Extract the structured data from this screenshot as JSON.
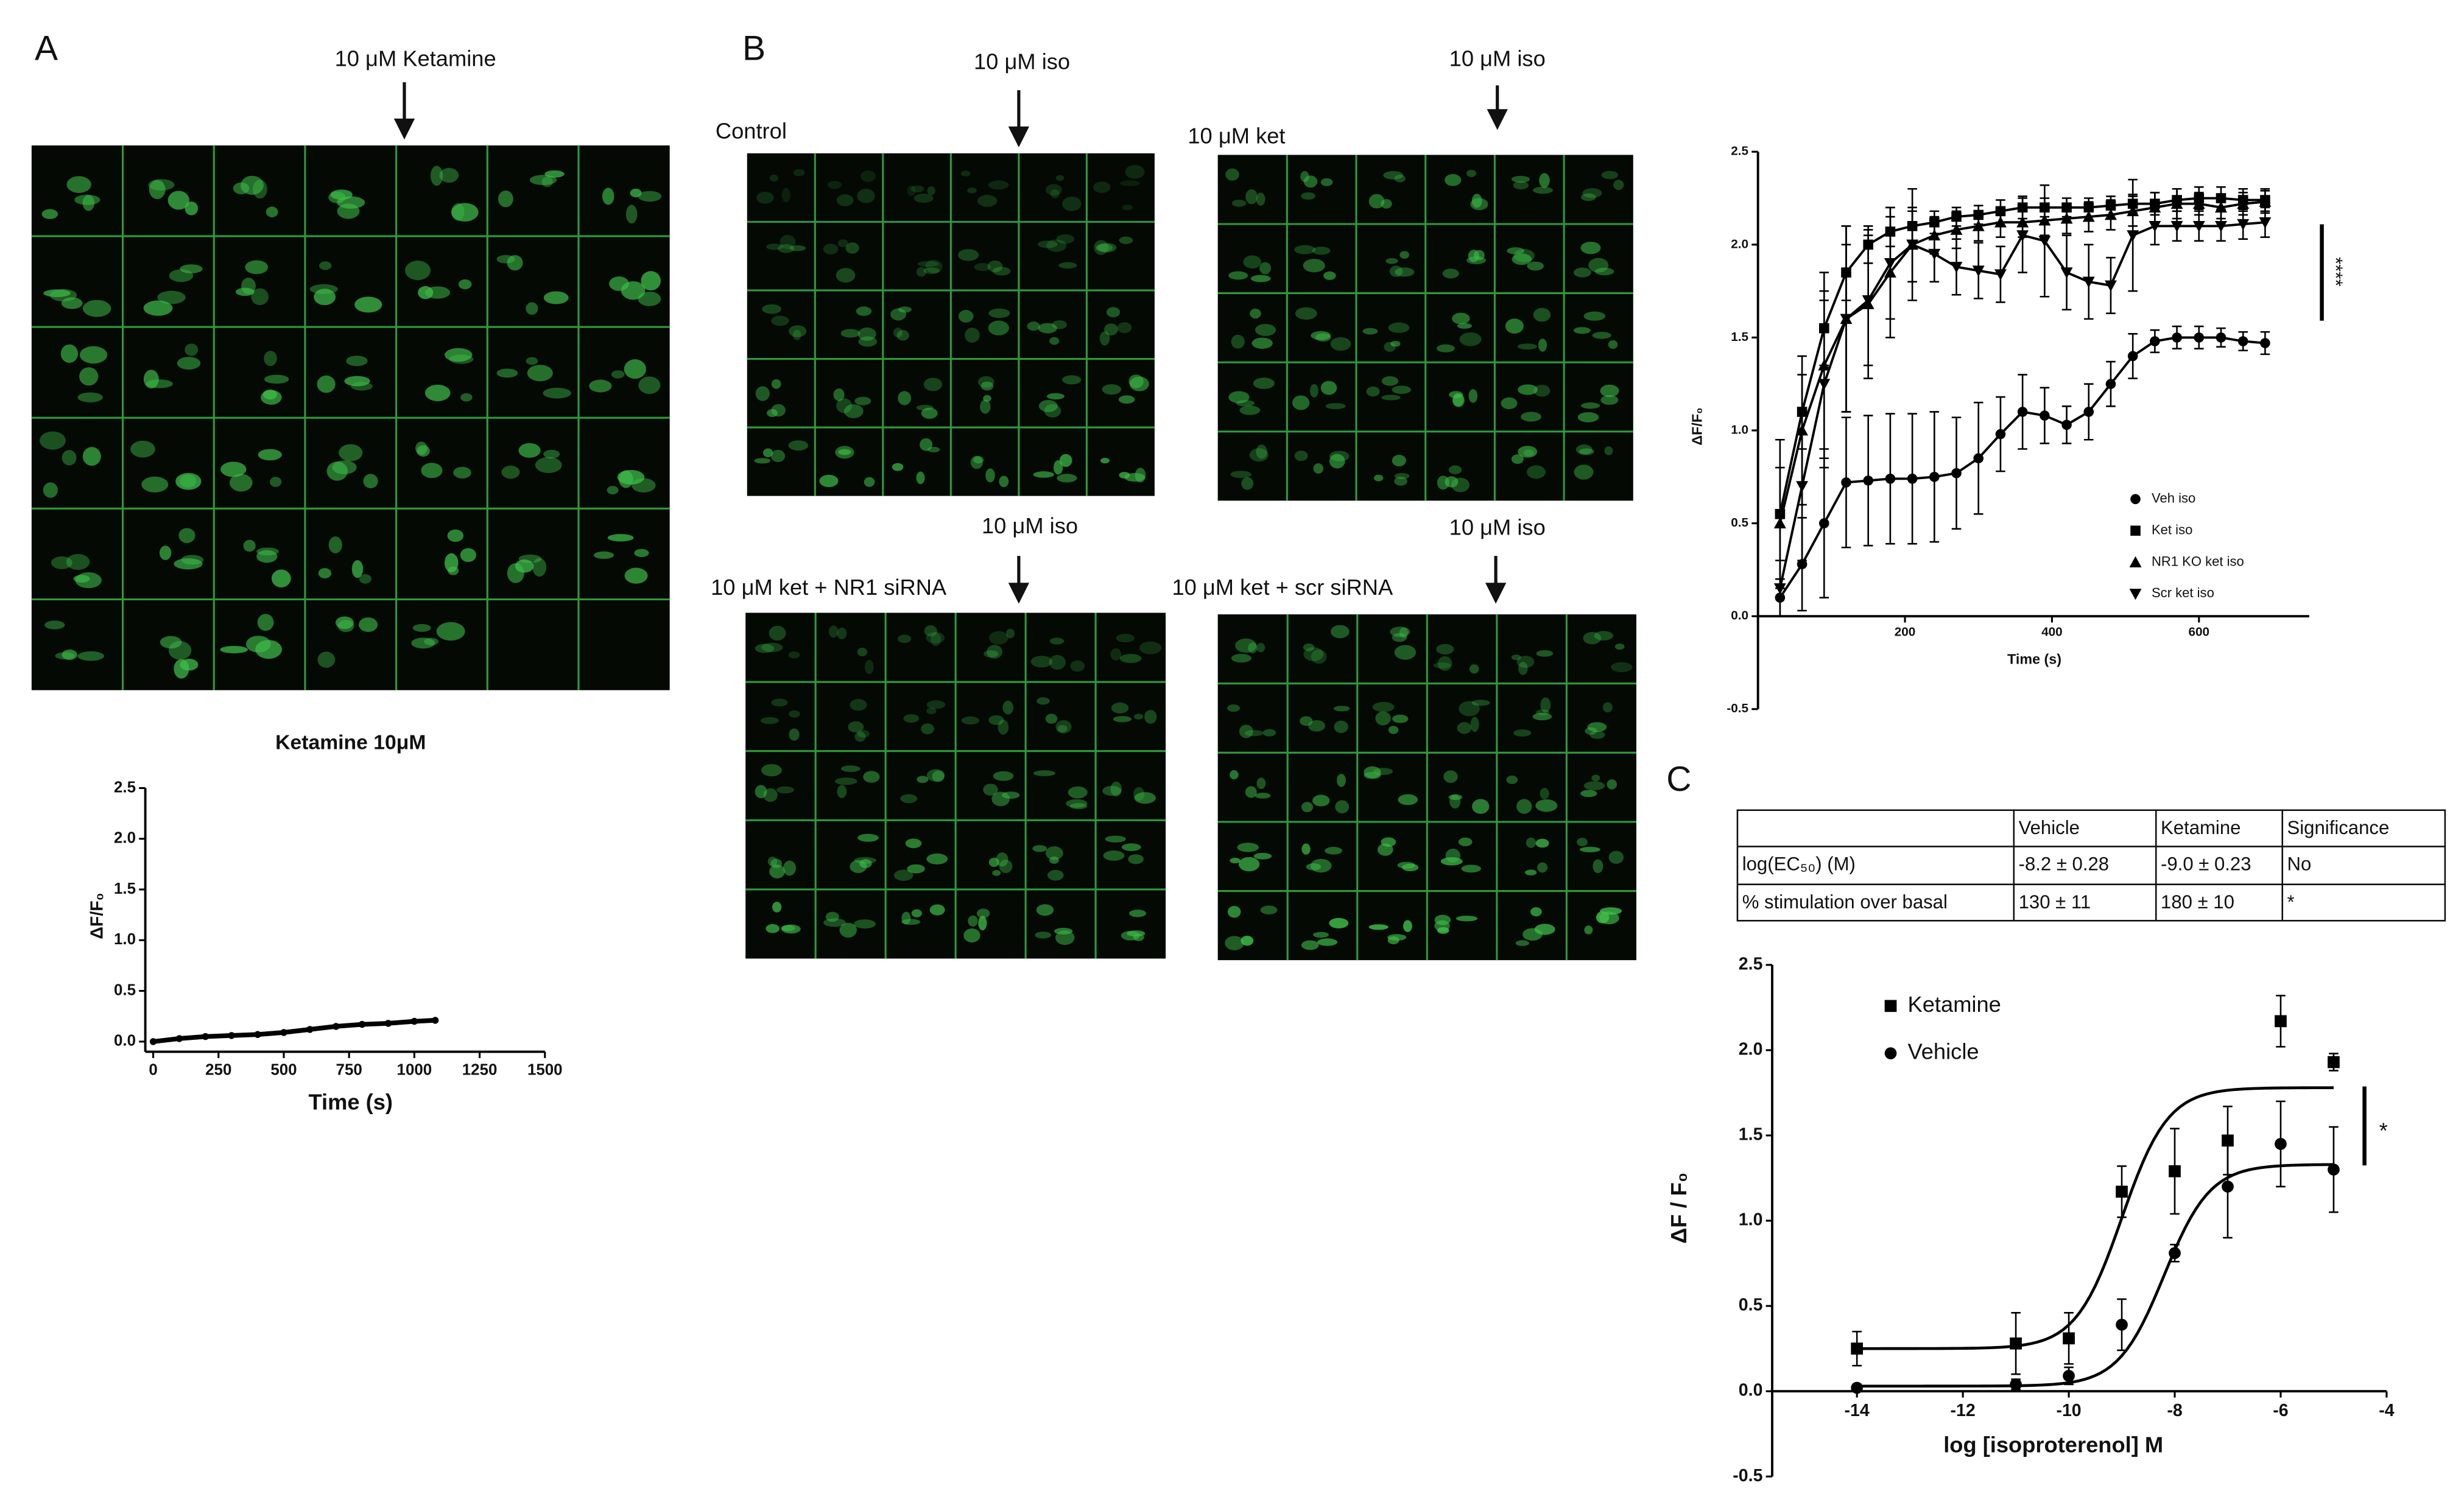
{
  "panels": {
    "a": {
      "label": "A",
      "stimulus": "10 μM Ketamine"
    },
    "b": {
      "label": "B",
      "images": [
        {
          "condition": "Control",
          "stimulus": "10 μM iso"
        },
        {
          "condition": "10 μM ket",
          "stimulus": "10 μM iso"
        },
        {
          "condition": "10 μM ket + NR1 siRNA",
          "stimulus": "10 μM iso"
        },
        {
          "condition": "10 μM ket + scr siRNA",
          "stimulus": "10 μM iso"
        }
      ]
    },
    "c": {
      "label": "C"
    }
  },
  "table": {
    "header": [
      "Vehicle",
      "Ketamine",
      "Significance"
    ],
    "rows": [
      [
        "log(EC₅₀) (M)",
        "-8.2 ± 0.28",
        "-9.0 ± 0.23",
        "No"
      ],
      [
        "% stimulation over basal",
        "130 ± 11",
        "180 ± 10",
        "*"
      ]
    ]
  },
  "chart_data": [
    {
      "type": "line",
      "title": "Ketamine 10μM",
      "x_label": "Time (s)",
      "y_label": "ΔF/F₀",
      "x": [
        0,
        100,
        200,
        300,
        400,
        500,
        600,
        700,
        800,
        900,
        1000,
        1080
      ],
      "series": [
        {
          "name": "Ketamine 10μM",
          "color": "#000000",
          "marker": "circle",
          "values": [
            0.0,
            0.03,
            0.05,
            0.06,
            0.07,
            0.09,
            0.12,
            0.15,
            0.17,
            0.18,
            0.2,
            0.21
          ]
        }
      ],
      "xlim": [
        0,
        1500
      ],
      "ylim": [
        -0.1,
        2.5
      ],
      "xticks": [
        0,
        250,
        500,
        750,
        1000,
        1250,
        1500
      ],
      "yticks": [
        {
          "value": 0,
          "label": "0.0"
        },
        {
          "value": 0.5,
          "label": "0.5"
        },
        {
          "value": 1,
          "label": "1.0"
        },
        {
          "value": 1.5,
          "label": "1.5"
        },
        {
          "value": 2,
          "label": "2.0"
        },
        {
          "value": 2.5,
          "label": "2.5"
        }
      ]
    },
    {
      "type": "line",
      "x_label": "Time (s)",
      "y_label": "ΔF/F₀",
      "annotation": "****",
      "legend": "lower right",
      "x": [
        30,
        60,
        90,
        120,
        150,
        180,
        210,
        240,
        270,
        300,
        330,
        360,
        390,
        420,
        450,
        480,
        510,
        540,
        570,
        600,
        630,
        660,
        690
      ],
      "series": [
        {
          "name": "Veh iso",
          "color": "#000000",
          "marker": "circle",
          "values": [
            0.1,
            0.28,
            0.5,
            0.72,
            0.73,
            0.74,
            0.74,
            0.75,
            0.77,
            0.85,
            0.98,
            1.1,
            1.08,
            1.03,
            1.1,
            1.25,
            1.4,
            1.48,
            1.5,
            1.5,
            1.5,
            1.48,
            1.47
          ],
          "errors": [
            0.1,
            0.25,
            0.4,
            0.35,
            0.35,
            0.35,
            0.35,
            0.35,
            0.3,
            0.3,
            0.2,
            0.2,
            0.15,
            0.1,
            0.15,
            0.12,
            0.12,
            0.06,
            0.06,
            0.06,
            0.05,
            0.05,
            0.06
          ]
        },
        {
          "name": "Ket iso",
          "color": "#000000",
          "marker": "square",
          "values": [
            0.55,
            1.1,
            1.55,
            1.85,
            2.0,
            2.07,
            2.1,
            2.12,
            2.15,
            2.16,
            2.18,
            2.2,
            2.2,
            2.2,
            2.2,
            2.21,
            2.22,
            2.22,
            2.24,
            2.25,
            2.25,
            2.24,
            2.24
          ],
          "errors": [
            0.4,
            0.2,
            0.2,
            0.15,
            0.1,
            0.08,
            0.08,
            0.06,
            0.05,
            0.05,
            0.06,
            0.06,
            0.05,
            0.05,
            0.05,
            0.05,
            0.05,
            0.06,
            0.06,
            0.06,
            0.06,
            0.06,
            0.06
          ]
        },
        {
          "name": "NR1 KO ket iso",
          "color": "#000000",
          "marker": "triangle-up",
          "values": [
            0.5,
            1.0,
            1.35,
            1.6,
            1.68,
            1.85,
            2.0,
            2.05,
            2.08,
            2.1,
            2.12,
            2.12,
            2.13,
            2.14,
            2.15,
            2.16,
            2.18,
            2.2,
            2.22,
            2.22,
            2.2,
            2.22,
            2.23
          ],
          "errors": [
            0.3,
            0.4,
            0.5,
            0.5,
            0.4,
            0.35,
            0.3,
            0.1,
            0.1,
            0.08,
            0.08,
            0.08,
            0.08,
            0.08,
            0.08,
            0.08,
            0.08,
            0.08,
            0.08,
            0.06,
            0.06,
            0.06,
            0.06
          ]
        },
        {
          "name": "Scr ket iso",
          "color": "#000000",
          "marker": "triangle-down",
          "values": [
            0.15,
            0.7,
            1.25,
            1.6,
            1.7,
            1.9,
            2.0,
            1.95,
            1.88,
            1.86,
            1.84,
            2.05,
            2.02,
            1.85,
            1.8,
            1.78,
            2.05,
            2.1,
            2.1,
            2.1,
            2.1,
            2.11,
            2.12
          ],
          "errors": [
            0.15,
            0.4,
            0.45,
            0.5,
            0.35,
            0.3,
            0.2,
            0.15,
            0.15,
            0.15,
            0.15,
            0.2,
            0.3,
            0.2,
            0.2,
            0.15,
            0.3,
            0.1,
            0.08,
            0.08,
            0.08,
            0.08,
            0.08
          ]
        }
      ],
      "xlim": [
        0,
        750
      ],
      "ylim": [
        -0.5,
        2.5
      ],
      "xticks": [
        200,
        400,
        600
      ],
      "yticks": [
        {
          "value": -0.5,
          "label": "-0.5"
        },
        {
          "value": 0,
          "label": "0.0"
        },
        {
          "value": 0.5,
          "label": "0.5"
        },
        {
          "value": 1,
          "label": "1.0"
        },
        {
          "value": 1.5,
          "label": "1.5"
        },
        {
          "value": 2,
          "label": "2.0"
        },
        {
          "value": 2.5,
          "label": "2.5"
        }
      ]
    },
    {
      "type": "scatter",
      "x_label": "log [isoproterenol] M",
      "y_label": "ΔF / F₀",
      "annotation": "*",
      "legend": "upper left",
      "x": [
        -14,
        -11,
        -10,
        -9,
        -8,
        -7,
        -6,
        -5
      ],
      "series": [
        {
          "name": "Ketamine",
          "color": "#000000",
          "marker": "square",
          "values": [
            0.25,
            0.28,
            0.31,
            1.17,
            1.29,
            1.47,
            2.17,
            1.93
          ],
          "errors": [
            0.1,
            0.18,
            0.15,
            0.15,
            0.25,
            0.2,
            0.15,
            0.05
          ],
          "fit": {
            "bottom": 0.25,
            "top": 1.78,
            "log_ec50": -9.0,
            "hill": 1
          }
        },
        {
          "name": "Vehicle",
          "color": "#000000",
          "marker": "circle",
          "values": [
            0.02,
            0.04,
            0.09,
            0.39,
            0.81,
            1.2,
            1.45,
            1.3
          ],
          "errors": [
            0.02,
            0.03,
            0.05,
            0.15,
            0.05,
            0.3,
            0.25,
            0.25
          ],
          "fit": {
            "bottom": 0.03,
            "top": 1.33,
            "log_ec50": -8.2,
            "hill": 1
          }
        }
      ],
      "xlim": [
        -15.6,
        -4
      ],
      "ylim": [
        -0.5,
        2.5
      ],
      "xticks": [
        -14,
        -12,
        -10,
        -8,
        -6,
        -4
      ],
      "yticks": [
        {
          "value": -0.5,
          "label": "-0.5"
        },
        {
          "value": 0,
          "label": "0.0"
        },
        {
          "value": 0.5,
          "label": "0.5"
        },
        {
          "value": 1,
          "label": "1.0"
        },
        {
          "value": 1.5,
          "label": "1.5"
        },
        {
          "value": 2,
          "label": "2.0"
        },
        {
          "value": 2.5,
          "label": "2.5"
        }
      ]
    }
  ]
}
